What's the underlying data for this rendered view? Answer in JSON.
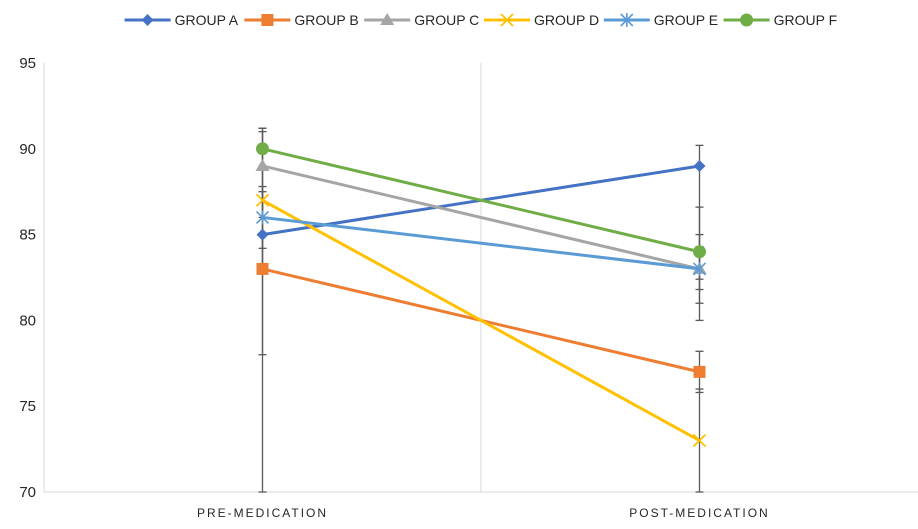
{
  "chart_data": {
    "type": "line",
    "title": "",
    "xlabel": "",
    "ylabel": "",
    "categories": [
      "PRE-MEDICATION",
      "POST-MEDICATION"
    ],
    "ylim": [
      70,
      95
    ],
    "yticks": [
      70,
      75,
      80,
      85,
      90,
      95
    ],
    "grid": "vertical divider between categories",
    "legend_position": "top",
    "series": [
      {
        "name": "GROUP A",
        "values": [
          85,
          89
        ],
        "color": "#4472C4",
        "marker": "diamond"
      },
      {
        "name": "GROUP B",
        "values": [
          83,
          77
        ],
        "color": "#ED7D31",
        "marker": "square"
      },
      {
        "name": "GROUP C",
        "values": [
          89,
          83
        ],
        "color": "#A5A5A5",
        "marker": "triangle"
      },
      {
        "name": "GROUP D",
        "values": [
          87,
          73
        ],
        "color": "#FFC000",
        "marker": "x"
      },
      {
        "name": "GROUP E",
        "values": [
          86,
          83
        ],
        "color": "#5B9BD5",
        "marker": "star"
      },
      {
        "name": "GROUP F",
        "values": [
          90,
          84
        ],
        "color": "#70AD47",
        "marker": "circle"
      }
    ],
    "error_bar_color": "#595959"
  }
}
